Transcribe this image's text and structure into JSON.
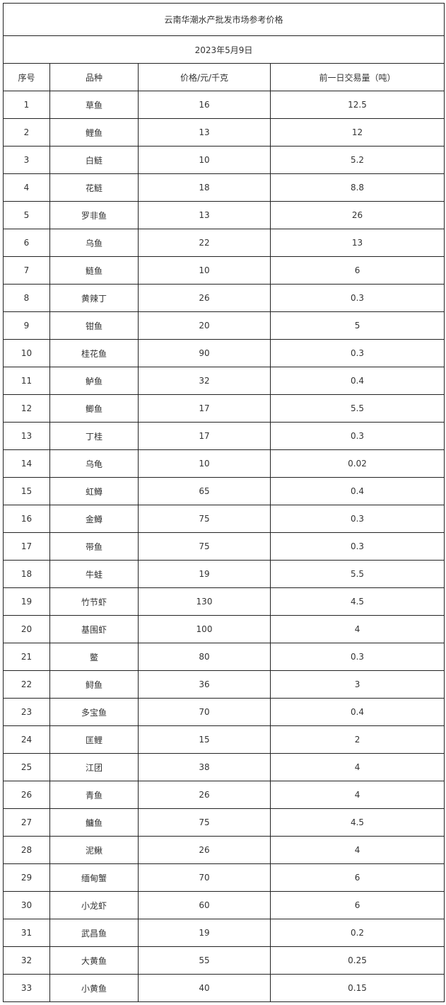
{
  "title": "云南华潮水产批发市场参考价格",
  "date": "2023年5月9日",
  "headers": [
    "序号",
    "品种",
    "价格/元/千克",
    "前一日交易量（吨）"
  ],
  "rows": [
    [
      "1",
      "草鱼",
      "16",
      "12.5"
    ],
    [
      "2",
      "鲤鱼",
      "13",
      "12"
    ],
    [
      "3",
      "白鲢",
      "10",
      "5.2"
    ],
    [
      "4",
      "花鲢",
      "18",
      "8.8"
    ],
    [
      "5",
      "罗非鱼",
      "13",
      "26"
    ],
    [
      "6",
      "乌鱼",
      "22",
      "13"
    ],
    [
      "7",
      "鲢鱼",
      "10",
      "6"
    ],
    [
      "8",
      "黄辣丁",
      "26",
      "0.3"
    ],
    [
      "9",
      "钳鱼",
      "20",
      "5"
    ],
    [
      "10",
      "桂花鱼",
      "90",
      "0.3"
    ],
    [
      "11",
      "鲈鱼",
      "32",
      "0.4"
    ],
    [
      "12",
      "鲫鱼",
      "17",
      "5.5"
    ],
    [
      "13",
      "丁桂",
      "17",
      "0.3"
    ],
    [
      "14",
      "乌龟",
      "10",
      "0.02"
    ],
    [
      "15",
      "虹鳟",
      "65",
      "0.4"
    ],
    [
      "16",
      "金鳟",
      "75",
      "0.3"
    ],
    [
      "17",
      "带鱼",
      "75",
      "0.3"
    ],
    [
      "18",
      "牛蛙",
      "19",
      "5.5"
    ],
    [
      "19",
      "竹节虾",
      "130",
      "4.5"
    ],
    [
      "20",
      "基围虾",
      "100",
      "4"
    ],
    [
      "21",
      "鳖",
      "80",
      "0.3"
    ],
    [
      "22",
      "鲟鱼",
      "36",
      "3"
    ],
    [
      "23",
      "多宝鱼",
      "70",
      "0.4"
    ],
    [
      "24",
      "匡鲤",
      "15",
      "2"
    ],
    [
      "25",
      "江团",
      "38",
      "4"
    ],
    [
      "26",
      "青鱼",
      "26",
      "4"
    ],
    [
      "27",
      "鳙鱼",
      "75",
      "4.5"
    ],
    [
      "28",
      "泥鳅",
      "26",
      "4"
    ],
    [
      "29",
      "缅甸蟹",
      "70",
      "6"
    ],
    [
      "30",
      "小龙虾",
      "60",
      "6"
    ],
    [
      "31",
      "武昌鱼",
      "19",
      "0.2"
    ],
    [
      "32",
      "大黄鱼",
      "55",
      "0.25"
    ],
    [
      "33",
      "小黄鱼",
      "40",
      "0.15"
    ]
  ]
}
